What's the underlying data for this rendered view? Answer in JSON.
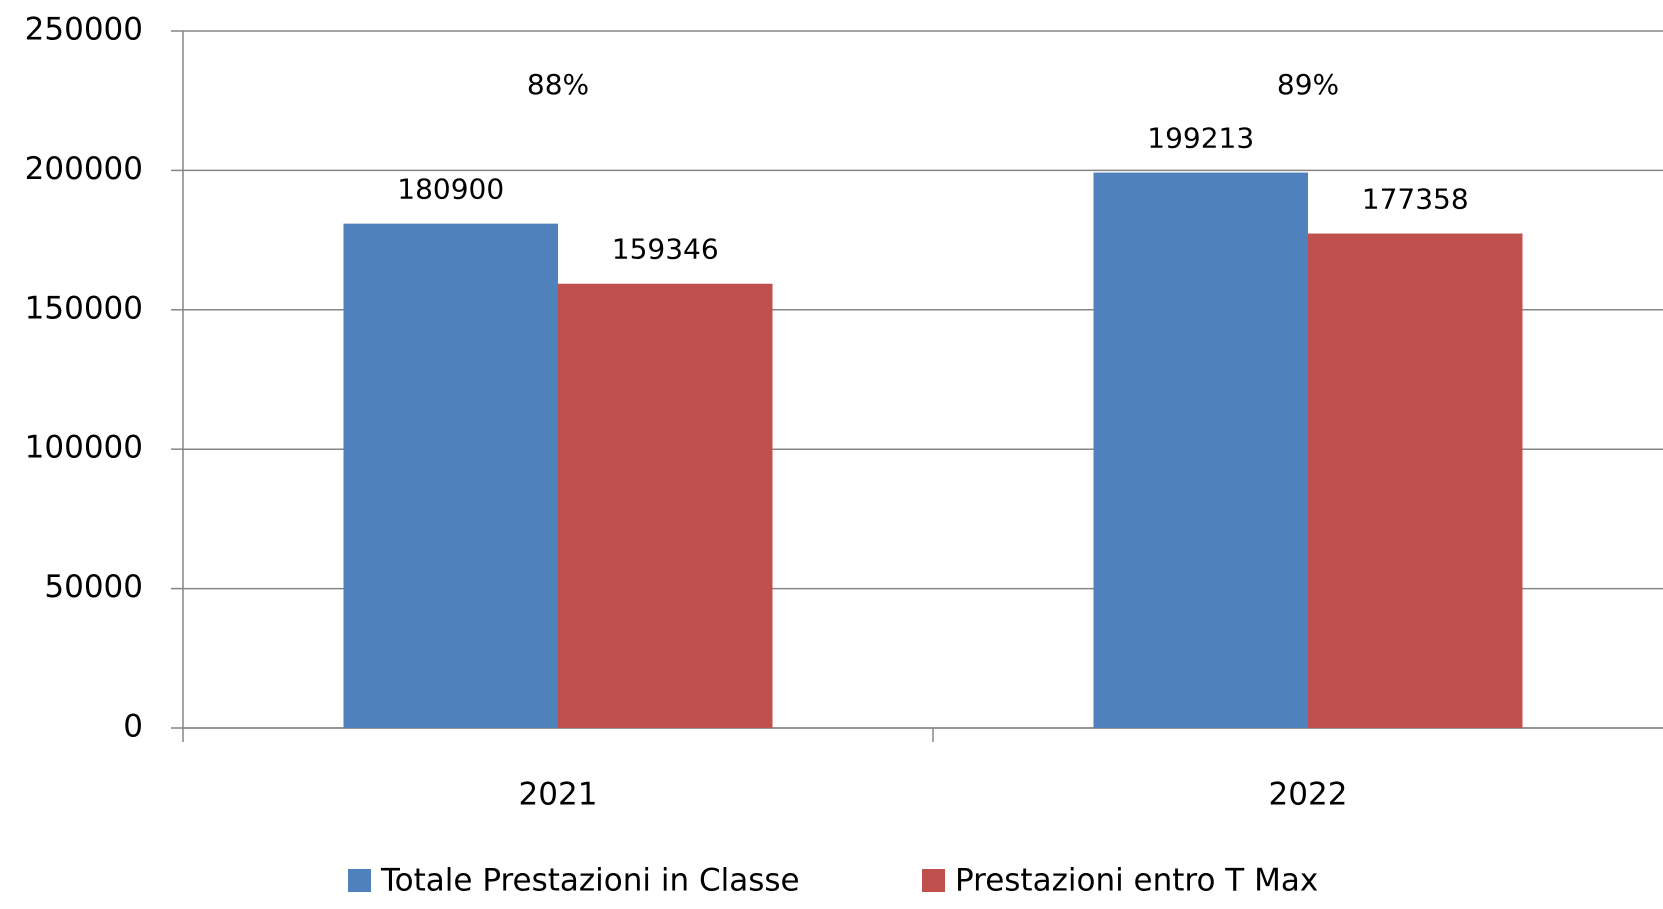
{
  "chart_data": {
    "type": "bar",
    "categories": [
      "2021",
      "2022"
    ],
    "series": [
      {
        "name": "Totale Prestazioni in Classe",
        "color": "#4f81bd",
        "values": [
          180900,
          199213
        ]
      },
      {
        "name": "Prestazioni entro T Max",
        "color": "#c0504d",
        "values": [
          159346,
          177358
        ]
      }
    ],
    "annotations": [
      "88%",
      "89%"
    ],
    "ylim": [
      0,
      250000
    ],
    "yticks": [
      0,
      50000,
      100000,
      150000,
      200000,
      250000
    ],
    "grid": true,
    "legend": "bottom"
  }
}
